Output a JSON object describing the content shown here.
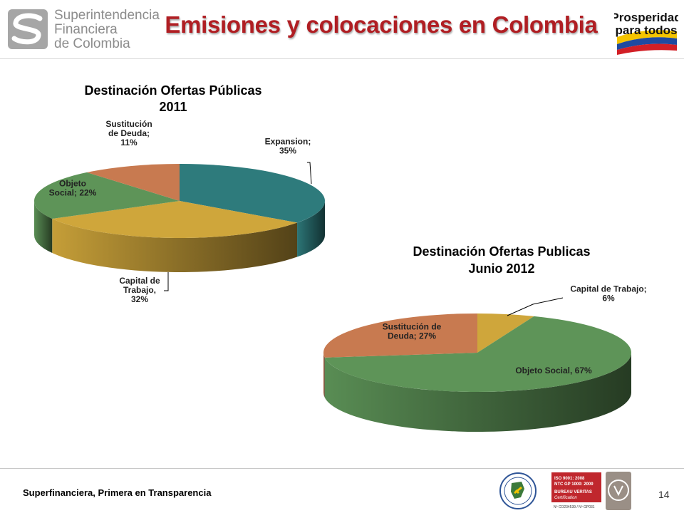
{
  "header": {
    "logo_lines": [
      "Superintendencia",
      "Financiera",
      "de Colombia"
    ],
    "title": "Emisiones y colocaciones en Colombia",
    "badge_lines": [
      "Prosperidad",
      "para todos"
    ]
  },
  "chart_data": [
    {
      "type": "pie",
      "title": "Destinación Ofertas Públicas",
      "subtitle": "2011",
      "slices": [
        {
          "name": "Expansion",
          "label": [
            "Expansion;",
            "35%"
          ],
          "value": 35,
          "color": "#2e7b7c"
        },
        {
          "name": "Capital de Trabajo",
          "label": [
            "Capital de",
            "Trabajo,",
            "32%"
          ],
          "value": 32,
          "color": "#cfa63b"
        },
        {
          "name": "Objeto Social",
          "label": [
            "Objeto",
            "Social; 22%"
          ],
          "value": 22,
          "color": "#5e9458"
        },
        {
          "name": "Sustitución de Deuda",
          "label": [
            "Sustitución",
            "de Deuda;",
            "11%"
          ],
          "value": 11,
          "color": "#c87a50"
        }
      ]
    },
    {
      "type": "pie",
      "title": "Destinación Ofertas Publicas",
      "subtitle": "Junio 2012",
      "slices": [
        {
          "name": "Capital de Trabajo",
          "label": [
            "Capital de Trabajo;",
            "6%"
          ],
          "value": 6,
          "color": "#cfa63b"
        },
        {
          "name": "Objeto Social",
          "label": [
            "Objeto Social, 67%"
          ],
          "value": 67,
          "color": "#5e9458"
        },
        {
          "name": "Sustitución de Deuda",
          "label": [
            "Sustitución de",
            "Deuda; 27%"
          ],
          "value": 27,
          "color": "#c87a50"
        }
      ]
    }
  ],
  "footer": {
    "text": "Superfinanciera, Primera en Transparencia",
    "page": "14",
    "cert_lines": [
      "ISO 9001: 2008",
      "NTC GP 1000: 2009",
      "BUREAU VERITAS",
      "Certification",
      "Nº CO234539 / Nº GP031"
    ]
  }
}
